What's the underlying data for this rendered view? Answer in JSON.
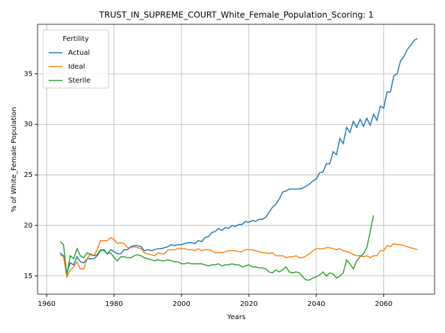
{
  "chart_data": {
    "type": "line",
    "title": "TRUST_IN_SUPREME_COURT_White_Female_Population_Scoring: 1",
    "xlabel": "Years",
    "ylabel": "% of White_Female Population",
    "legend_title": "Fertility",
    "legend_loc": "upper left",
    "grid": true,
    "xlim": [
      1957.3,
      2075.1
    ],
    "ylim": [
      13.2,
      39.9
    ],
    "xticks": [
      1960,
      1980,
      2000,
      2020,
      2040,
      2060
    ],
    "yticks": [
      15,
      20,
      25,
      30,
      35
    ],
    "x": [
      1964,
      1965,
      1966,
      1967,
      1968,
      1969,
      1970,
      1971,
      1972,
      1973,
      1974,
      1975,
      1976,
      1977,
      1978,
      1979,
      1980,
      1981,
      1982,
      1983,
      1984,
      1985,
      1986,
      1987,
      1988,
      1989,
      1990,
      1991,
      1992,
      1993,
      1994,
      1995,
      1996,
      1997,
      1998,
      1999,
      2000,
      2001,
      2002,
      2003,
      2004,
      2005,
      2006,
      2007,
      2008,
      2009,
      2010,
      2011,
      2012,
      2013,
      2014,
      2015,
      2016,
      2017,
      2018,
      2019,
      2020,
      2021,
      2022,
      2023,
      2024,
      2025,
      2026,
      2027,
      2028,
      2029,
      2030,
      2031,
      2032,
      2033,
      2034,
      2035,
      2036,
      2037,
      2038,
      2039,
      2040,
      2041,
      2042,
      2043,
      2044,
      2045,
      2046,
      2047,
      2048,
      2049,
      2050,
      2051,
      2052,
      2053,
      2054,
      2055,
      2056,
      2057,
      2058,
      2059,
      2060,
      2061,
      2062,
      2063,
      2064,
      2065,
      2066,
      2067,
      2068,
      2069,
      2070
    ],
    "series": [
      {
        "name": "Actual",
        "color": "#1f77b4",
        "values": [
          17.3,
          17.0,
          15.3,
          16.3,
          16.1,
          16.9,
          16.4,
          16.3,
          16.7,
          16.7,
          16.7,
          17.0,
          17.5,
          17.6,
          17.2,
          17.6,
          17.4,
          17.2,
          17.2,
          17.6,
          17.6,
          17.9,
          18.0,
          18.0,
          17.9,
          17.5,
          17.6,
          17.5,
          17.6,
          17.7,
          17.7,
          17.8,
          17.9,
          18.1,
          18.0,
          18.1,
          18.1,
          18.2,
          18.3,
          18.3,
          18.2,
          18.5,
          18.4,
          18.8,
          18.9,
          19.3,
          19.4,
          19.7,
          19.5,
          19.8,
          19.7,
          20.0,
          19.9,
          20.1,
          20.1,
          20.4,
          20.3,
          20.5,
          20.4,
          20.6,
          20.6,
          20.8,
          21.3,
          21.8,
          22.1,
          22.6,
          23.3,
          23.4,
          23.6,
          23.6,
          23.6,
          23.6,
          23.7,
          23.9,
          24.1,
          24.4,
          24.6,
          25.2,
          25.3,
          26.1,
          26.1,
          27.3,
          27.0,
          28.6,
          28.1,
          29.7,
          29.2,
          30.3,
          29.7,
          30.5,
          29.8,
          30.6,
          29.9,
          31.0,
          30.4,
          31.8,
          31.6,
          33.2,
          33.2,
          34.8,
          35.0,
          36.3,
          36.7,
          37.4,
          37.8,
          38.3,
          38.5
        ]
      },
      {
        "name": "Ideal",
        "color": "#ff7f0e",
        "values": [
          17.1,
          16.9,
          14.9,
          15.6,
          15.9,
          16.4,
          15.7,
          15.7,
          16.7,
          17.2,
          17.0,
          17.6,
          18.5,
          18.5,
          18.5,
          18.8,
          18.6,
          18.2,
          18.3,
          18.2,
          17.8,
          17.8,
          17.9,
          17.8,
          17.7,
          17.3,
          17.2,
          17.1,
          17.0,
          17.3,
          17.2,
          17.2,
          17.6,
          17.6,
          17.6,
          17.7,
          17.7,
          17.7,
          17.6,
          17.6,
          17.5,
          17.7,
          17.5,
          17.6,
          17.6,
          17.5,
          17.3,
          17.3,
          17.3,
          17.4,
          17.5,
          17.5,
          17.5,
          17.4,
          17.4,
          17.6,
          17.6,
          17.6,
          17.5,
          17.4,
          17.3,
          17.3,
          17.2,
          17.3,
          17.0,
          17.0,
          17.0,
          16.8,
          16.9,
          16.9,
          17.0,
          16.8,
          16.8,
          17.0,
          17.2,
          17.5,
          17.7,
          17.7,
          17.7,
          17.8,
          17.8,
          17.7,
          17.6,
          17.7,
          17.5,
          17.4,
          17.3,
          17.1,
          17.0,
          17.0,
          16.9,
          17.0,
          16.8,
          17.0,
          17.0,
          17.5,
          17.5,
          18.0,
          17.9,
          18.2,
          18.1,
          18.1,
          18.0,
          17.9,
          17.8,
          17.7,
          17.6
        ]
      },
      {
        "name": "Sterile",
        "color": "#2ca02c",
        "values": [
          18.4,
          18.1,
          15.1,
          17.0,
          16.7,
          17.7,
          17.0,
          16.8,
          17.3,
          17.1,
          17.0,
          17.1,
          17.6,
          17.5,
          17.2,
          17.3,
          16.8,
          16.5,
          16.9,
          16.9,
          16.8,
          16.8,
          17.0,
          17.1,
          17.0,
          16.8,
          16.7,
          16.6,
          16.5,
          16.6,
          16.5,
          16.5,
          16.6,
          16.5,
          16.4,
          16.4,
          16.2,
          16.2,
          16.3,
          16.2,
          16.2,
          16.2,
          16.2,
          16.1,
          16.0,
          16.1,
          16.1,
          16.2,
          16.0,
          16.1,
          16.1,
          16.2,
          16.1,
          16.1,
          15.9,
          16.0,
          16.1,
          15.9,
          15.9,
          15.8,
          15.8,
          15.7,
          15.4,
          15.3,
          15.6,
          15.4,
          15.6,
          15.9,
          15.4,
          15.3,
          15.4,
          15.3,
          14.9,
          14.6,
          14.6,
          14.8,
          14.9,
          15.1,
          15.4,
          15.0,
          15.3,
          15.2,
          14.8,
          15.0,
          15.3,
          16.6,
          16.2,
          15.7,
          16.5,
          16.9,
          17.2,
          17.8,
          19.4,
          21.0,
          null,
          null,
          null,
          null,
          null,
          null,
          null,
          null,
          null,
          null,
          null,
          null,
          null
        ]
      }
    ]
  }
}
